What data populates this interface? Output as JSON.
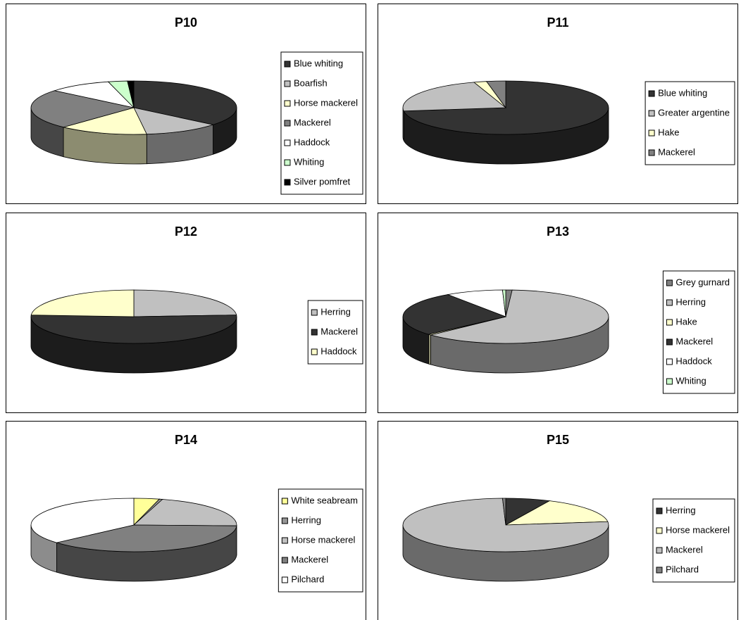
{
  "chart_data": [
    {
      "type": "pie",
      "title": "P10",
      "categories": [
        "Blue whiting",
        "Boarfish",
        "Horse mackerel",
        "Mackerel",
        "Haddock",
        "Whiting",
        "Silver pomfret"
      ],
      "values": [
        36,
        12,
        14,
        24,
        10,
        3,
        1
      ],
      "colors": [
        "#333333",
        "#c0c0c0",
        "#ffffcc",
        "#808080",
        "#ffffff",
        "#ccffcc",
        "#000000"
      ]
    },
    {
      "type": "pie",
      "title": "P11",
      "categories": [
        "Blue whiting",
        "Greater argentine",
        "Hake",
        "Mackerel"
      ],
      "values": [
        73,
        22,
        2,
        3
      ],
      "colors": [
        "#333333",
        "#c0c0c0",
        "#ffffcc",
        "#808080"
      ]
    },
    {
      "type": "pie",
      "title": "P12",
      "categories": [
        "Herring",
        "Mackerel",
        "Haddock"
      ],
      "values": [
        24,
        52,
        24
      ],
      "colors": [
        "#c0c0c0",
        "#333333",
        "#ffffcc"
      ]
    },
    {
      "type": "pie",
      "title": "P13",
      "categories": [
        "Grey gurnard",
        "Herring",
        "Hake",
        "Mackerel",
        "Haddock",
        "Whiting"
      ],
      "values": [
        1,
        62,
        0.5,
        27,
        9,
        0.5
      ],
      "colors": [
        "#808080",
        "#c0c0c0",
        "#ffffcc",
        "#333333",
        "#ffffff",
        "#ccffcc"
      ]
    },
    {
      "type": "pie",
      "title": "P14",
      "categories": [
        "White seabream",
        "Herring",
        "Horse mackerel",
        "Mackerel",
        "Pilchard"
      ],
      "values": [
        4,
        0.5,
        21,
        38,
        36.5
      ],
      "colors": [
        "#ffff99",
        "#969696",
        "#c0c0c0",
        "#808080",
        "#ffffff"
      ]
    },
    {
      "type": "pie",
      "title": "P15",
      "categories": [
        "Herring",
        "Horse mackerel",
        "Mackerel",
        "Pilchard"
      ],
      "values": [
        7,
        16,
        76.5,
        0.5
      ],
      "colors": [
        "#333333",
        "#ffffcc",
        "#c0c0c0",
        "#808080"
      ]
    }
  ]
}
